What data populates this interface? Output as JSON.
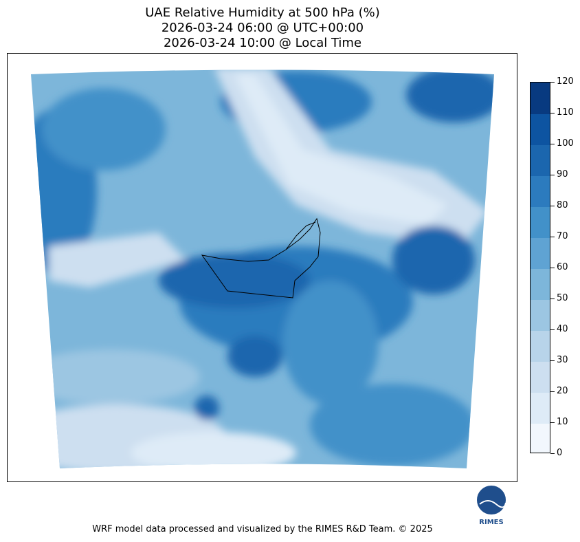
{
  "title": {
    "line1": "UAE Relative Humidity at 500 hPa (%)",
    "line2": "2026-03-24 06:00 @ UTC+00:00",
    "line3": "2026-03-24 10:00 @ Local Time"
  },
  "colorbar": {
    "levels": [
      "0",
      "10",
      "20",
      "30",
      "40",
      "50",
      "60",
      "70",
      "80",
      "90",
      "100",
      "110",
      "120"
    ],
    "colors": [
      "#f2f7fd",
      "#deebf7",
      "#cddff0",
      "#b8d4ea",
      "#9cc6e2",
      "#7db6da",
      "#5fa3d3",
      "#4291c9",
      "#2c7bbe",
      "#1b66ae",
      "#0d54a1",
      "#083a80"
    ]
  },
  "map": {
    "region": "UAE",
    "variable": "Relative Humidity",
    "level": "500 hPa"
  },
  "logo": {
    "text": "RIMES"
  },
  "footer": "WRF model data processed and visualized by the RIMES R&D Team. © 2025"
}
